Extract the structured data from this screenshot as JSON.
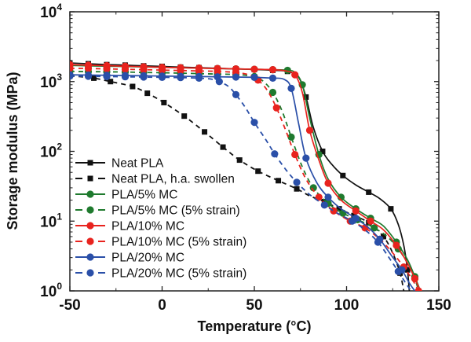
{
  "chart_data": {
    "type": "line",
    "title": "",
    "xlabel": "Temperature (°C)",
    "ylabel": "Storage modulus (MPa)",
    "xlim": [
      -50,
      150
    ],
    "ylim": [
      1,
      10000
    ],
    "yscale": "log",
    "grid": false,
    "legend_position": "bottom-left",
    "x_ticks": [
      {
        "value": -50,
        "label": "-50"
      },
      {
        "value": 0,
        "label": "0"
      },
      {
        "value": 50,
        "label": "50"
      },
      {
        "value": 100,
        "label": "100"
      },
      {
        "value": 150,
        "label": "150"
      }
    ],
    "y_ticks": [
      {
        "value": 1,
        "base": "10",
        "exp": "0"
      },
      {
        "value": 10,
        "base": "10",
        "exp": "1"
      },
      {
        "value": 100,
        "base": "10",
        "exp": "2"
      },
      {
        "value": 1000,
        "base": "10",
        "exp": "3"
      },
      {
        "value": 10000,
        "base": "10",
        "exp": "4"
      }
    ],
    "series": [
      {
        "name": "Neat PLA",
        "color": "#111111",
        "dash": false,
        "marker": "square",
        "x": [
          -50,
          -40,
          -30,
          -20,
          -10,
          0,
          10,
          20,
          30,
          40,
          50,
          60,
          68,
          74,
          78,
          82,
          87,
          92,
          98,
          105,
          112,
          118,
          124,
          128,
          131,
          133,
          134
        ],
        "y": [
          1850,
          1800,
          1750,
          1720,
          1680,
          1650,
          1610,
          1580,
          1550,
          1520,
          1490,
          1450,
          1400,
          1150,
          600,
          220,
          100,
          65,
          45,
          33,
          26,
          21,
          15,
          9,
          4.5,
          2,
          1
        ]
      },
      {
        "name": "Neat PLA, h.a. swollen",
        "color": "#111111",
        "dash": true,
        "marker": "square",
        "x": [
          -50,
          -45,
          -37,
          -28,
          -16,
          -8,
          1,
          12,
          23,
          33,
          42,
          52,
          63,
          73,
          80,
          88,
          96,
          104,
          112,
          120,
          125,
          129,
          131
        ],
        "y": [
          1200,
          1180,
          1120,
          1000,
          850,
          680,
          500,
          320,
          190,
          115,
          75,
          52,
          38,
          29,
          23,
          19,
          15,
          12,
          9.5,
          6,
          3.5,
          1.8,
          1
        ]
      },
      {
        "name": "PLA/5% MC",
        "color": "#1f7a2e",
        "dash": false,
        "marker": "circle",
        "x": [
          -50,
          -40,
          -30,
          -20,
          -10,
          0,
          10,
          20,
          30,
          40,
          50,
          60,
          68,
          72,
          76,
          80,
          85,
          90,
          97,
          105,
          113,
          120,
          127,
          133,
          137,
          140
        ],
        "y": [
          1700,
          1680,
          1660,
          1640,
          1620,
          1600,
          1580,
          1560,
          1540,
          1520,
          1500,
          1480,
          1450,
          1350,
          900,
          300,
          90,
          40,
          22,
          15,
          11,
          8.5,
          5,
          2.8,
          1.6,
          1
        ]
      },
      {
        "name": "PLA/5% MC (5% strain)",
        "color": "#1f7a2e",
        "dash": true,
        "marker": "circle",
        "x": [
          -50,
          -40,
          -30,
          -20,
          -10,
          0,
          10,
          20,
          30,
          40,
          50,
          55,
          60,
          65,
          70,
          76,
          82,
          90,
          98,
          106,
          115,
          122,
          128,
          133,
          137,
          139
        ],
        "y": [
          1400,
          1390,
          1380,
          1370,
          1350,
          1340,
          1320,
          1300,
          1280,
          1260,
          1180,
          1000,
          700,
          380,
          160,
          60,
          30,
          18,
          13,
          10.5,
          8,
          6,
          4,
          2.5,
          1.5,
          1
        ]
      },
      {
        "name": "PLA/10% MC",
        "color": "#e8231e",
        "dash": false,
        "marker": "circle",
        "x": [
          -50,
          -40,
          -30,
          -20,
          -10,
          0,
          10,
          20,
          30,
          40,
          50,
          60,
          67,
          72,
          76,
          80,
          85,
          90,
          97,
          105,
          113,
          120,
          127,
          133,
          137,
          140
        ],
        "y": [
          1750,
          1720,
          1690,
          1660,
          1630,
          1600,
          1580,
          1560,
          1540,
          1520,
          1500,
          1480,
          1420,
          1250,
          700,
          200,
          75,
          35,
          20,
          14,
          10,
          7.5,
          4.5,
          2.5,
          1.5,
          1
        ]
      },
      {
        "name": "PLA/10% MC (5% strain)",
        "color": "#e8231e",
        "dash": true,
        "marker": "circle",
        "x": [
          -50,
          -40,
          -30,
          -20,
          -10,
          0,
          10,
          20,
          30,
          40,
          47,
          52,
          57,
          62,
          67,
          72,
          78,
          85,
          93,
          102,
          110,
          118,
          125,
          131,
          136,
          139
        ],
        "y": [
          1550,
          1540,
          1520,
          1500,
          1480,
          1460,
          1440,
          1420,
          1400,
          1350,
          1250,
          1050,
          750,
          420,
          200,
          90,
          40,
          22,
          14,
          10,
          8,
          5.5,
          3.5,
          2.2,
          1.4,
          1
        ]
      },
      {
        "name": "PLA/20% MC",
        "color": "#2a4fa8",
        "dash": false,
        "marker": "circle",
        "x": [
          -50,
          -40,
          -30,
          -20,
          -10,
          0,
          10,
          20,
          30,
          40,
          50,
          60,
          66,
          70,
          74,
          78,
          84,
          90,
          97,
          105,
          112,
          118,
          124,
          130,
          134,
          137
        ],
        "y": [
          1250,
          1240,
          1230,
          1220,
          1210,
          1200,
          1190,
          1180,
          1170,
          1160,
          1150,
          1120,
          1080,
          800,
          250,
          80,
          35,
          22,
          15,
          11,
          8,
          5.5,
          3.3,
          2,
          1.3,
          1
        ]
      },
      {
        "name": "PLA/20% MC (5% strain)",
        "color": "#2a4fa8",
        "dash": true,
        "marker": "circle",
        "x": [
          -50,
          -40,
          -30,
          -20,
          -10,
          0,
          10,
          20,
          27,
          31,
          36,
          40,
          45,
          50,
          56,
          61,
          67,
          73,
          80,
          88,
          95,
          103,
          110,
          117,
          123,
          128,
          132,
          135
        ],
        "y": [
          1200,
          1190,
          1180,
          1170,
          1160,
          1150,
          1140,
          1120,
          1080,
          1000,
          850,
          650,
          430,
          260,
          150,
          92,
          55,
          36,
          24,
          17,
          13,
          10,
          7.5,
          5,
          3,
          1.9,
          1.3,
          1
        ]
      }
    ]
  }
}
